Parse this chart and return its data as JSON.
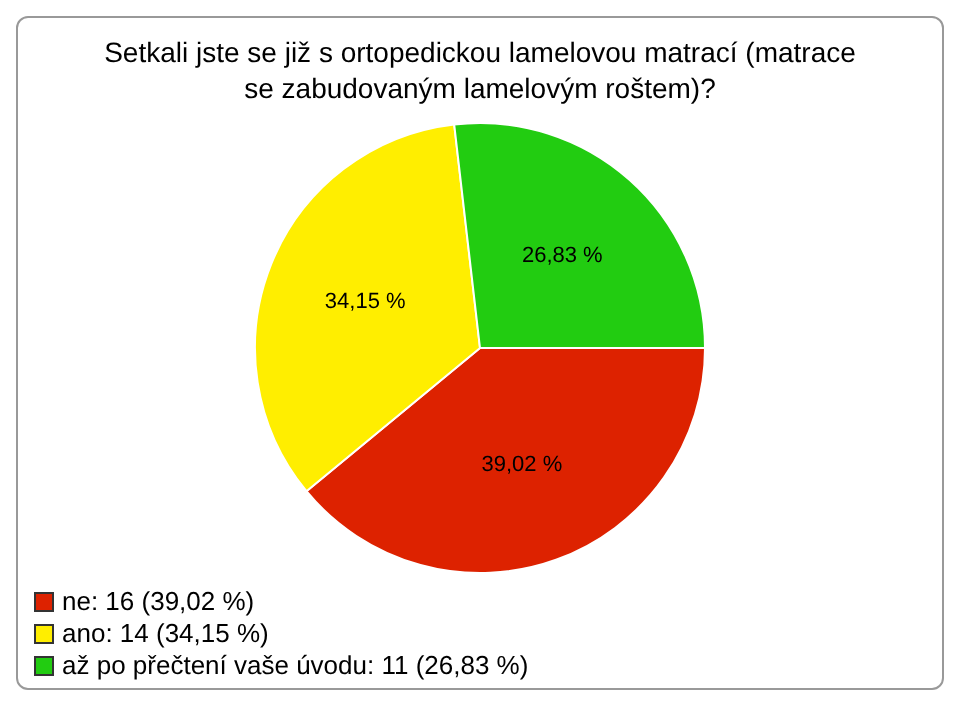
{
  "chart_data": {
    "type": "pie",
    "title": "Setkali jste se již s ortopedickou lamelovou matrací (matrace se zabudovaným lamelovým roštem)?",
    "categories": [
      "ne: 16 (39,02 %)",
      "ano: 14 (34,15 %)",
      "až po přečtení vaše úvodu: 11 (26,83 %)"
    ],
    "values": [
      39.02,
      34.15,
      26.83
    ],
    "value_labels": [
      "39,02 %",
      "34,15 %",
      "26,83 %"
    ],
    "colors": [
      "#dd2200",
      "#ffee00",
      "#22cc11"
    ],
    "legend": "bottom left"
  }
}
